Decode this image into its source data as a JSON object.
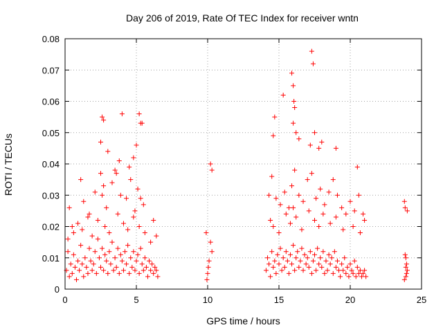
{
  "chart_data": {
    "type": "scatter",
    "title": "Day 206 of 2019, Rate Of TEC Index for receiver wntn",
    "xlabel": "GPS time / hours",
    "ylabel": "ROTI / TECUs",
    "xlim": [
      0,
      25
    ],
    "ylim": [
      0,
      0.08
    ],
    "xticks": [
      "0",
      "5",
      "10",
      "15",
      "20",
      "25"
    ],
    "yticks": [
      "0",
      "0.01",
      "0.02",
      "0.03",
      "0.04",
      "0.05",
      "0.06",
      "0.07",
      "0.08"
    ],
    "xtick_values": [
      0,
      5,
      10,
      15,
      20,
      25
    ],
    "ytick_values": [
      0,
      0.01,
      0.02,
      0.03,
      0.04,
      0.05,
      0.06,
      0.07,
      0.08
    ],
    "grid": true,
    "marker": "+",
    "color": "#ff0000",
    "series": [
      {
        "x": [
          0.1,
          0.2,
          0.3,
          0.4,
          0.5,
          0.6,
          0.7,
          0.8,
          0.9,
          1.0,
          1.1,
          1.2,
          1.3,
          1.4,
          1.5,
          1.6,
          1.7,
          1.8,
          1.9,
          2.0,
          2.1,
          2.2,
          2.3,
          2.4,
          2.5,
          2.6,
          2.7,
          2.8,
          2.9,
          3.0,
          3.1,
          3.2,
          3.3,
          3.4,
          3.5,
          3.6,
          3.7,
          3.8,
          3.9,
          4.0,
          4.1,
          4.2,
          4.3,
          4.4,
          4.5,
          4.6,
          4.7,
          4.8,
          4.9,
          5.0,
          5.1,
          5.2,
          5.3,
          5.4,
          5.5,
          5.6,
          5.7,
          5.8,
          5.9,
          6.0,
          6.1,
          6.2,
          6.3,
          6.4,
          6.5,
          0.3,
          0.5,
          1.1,
          1.3,
          1.7,
          2.1,
          2.5,
          2.6,
          2.7,
          2.9,
          3.3,
          3.5,
          3.9,
          4.3,
          4.6,
          4.9,
          5.1,
          5.3,
          5.5,
          6.2,
          0.2,
          0.6,
          0.9,
          1.2,
          1.6,
          1.9,
          2.3,
          2.8,
          3.1,
          3.7,
          4.1,
          4.4,
          4.8,
          5.2,
          5.6,
          6.0,
          6.4,
          2.6,
          2.7,
          4.0,
          5.0,
          5.2,
          5.3,
          3.0,
          3.8,
          4.8,
          5.4,
          2.5,
          3.6,
          4.5,
          9.9,
          10.0,
          10.1,
          10.2,
          10.3,
          10.2,
          10.3,
          9.95,
          10.05,
          14.1,
          14.2,
          14.3,
          14.4,
          14.5,
          14.6,
          14.7,
          14.8,
          14.9,
          15.0,
          15.1,
          15.2,
          15.3,
          15.4,
          15.5,
          15.6,
          15.7,
          15.8,
          15.9,
          16.0,
          16.1,
          16.2,
          16.3,
          16.4,
          16.5,
          16.6,
          16.7,
          16.8,
          16.9,
          17.0,
          17.1,
          17.2,
          17.3,
          17.4,
          17.5,
          17.6,
          17.7,
          17.8,
          17.9,
          18.0,
          18.1,
          18.2,
          18.3,
          18.4,
          18.5,
          18.6,
          18.7,
          18.8,
          18.9,
          19.0,
          19.1,
          19.2,
          19.3,
          19.4,
          19.5,
          19.6,
          19.7,
          19.8,
          19.9,
          20.0,
          20.1,
          20.2,
          20.3,
          20.4,
          20.5,
          20.6,
          20.7,
          20.8,
          20.9,
          21.0,
          21.1,
          14.3,
          14.5,
          14.8,
          15.1,
          15.4,
          15.7,
          15.9,
          16.1,
          16.4,
          16.7,
          17.0,
          17.3,
          17.6,
          17.9,
          18.2,
          18.5,
          18.8,
          19.1,
          19.4,
          19.7,
          20.0,
          20.3,
          20.6,
          20.9,
          14.4,
          14.6,
          15.0,
          15.5,
          15.8,
          16.0,
          16.2,
          16.6,
          17.1,
          17.5,
          17.8,
          18.1,
          18.6,
          19.0,
          19.5,
          20.2,
          20.7,
          21.0,
          15.9,
          16.0,
          16.05,
          16.1,
          16.2,
          17.3,
          17.4,
          17.5,
          14.6,
          14.7,
          15.3,
          16.0,
          16.4,
          17.2,
          17.8,
          18.0,
          19.0,
          20.5,
          23.8,
          23.85,
          23.9,
          23.95,
          24.0,
          23.9,
          23.85,
          23.95,
          23.9,
          23.8,
          24.0
        ],
        "y": [
          0.006,
          0.012,
          0.004,
          0.008,
          0.005,
          0.011,
          0.007,
          0.003,
          0.009,
          0.006,
          0.014,
          0.008,
          0.004,
          0.01,
          0.007,
          0.005,
          0.013,
          0.009,
          0.006,
          0.008,
          0.012,
          0.005,
          0.016,
          0.01,
          0.007,
          0.013,
          0.006,
          0.011,
          0.009,
          0.005,
          0.012,
          0.008,
          0.015,
          0.006,
          0.01,
          0.007,
          0.013,
          0.005,
          0.011,
          0.009,
          0.006,
          0.012,
          0.008,
          0.014,
          0.005,
          0.01,
          0.007,
          0.012,
          0.006,
          0.009,
          0.011,
          0.005,
          0.013,
          0.008,
          0.006,
          0.01,
          0.007,
          0.004,
          0.009,
          0.006,
          0.008,
          0.005,
          0.007,
          0.006,
          0.004,
          0.026,
          0.02,
          0.035,
          0.028,
          0.024,
          0.031,
          0.037,
          0.03,
          0.033,
          0.026,
          0.034,
          0.038,
          0.03,
          0.029,
          0.035,
          0.025,
          0.032,
          0.029,
          0.027,
          0.022,
          0.016,
          0.018,
          0.021,
          0.019,
          0.023,
          0.017,
          0.022,
          0.02,
          0.018,
          0.024,
          0.021,
          0.019,
          0.023,
          0.02,
          0.018,
          0.015,
          0.017,
          0.055,
          0.054,
          0.056,
          0.046,
          0.056,
          0.053,
          0.044,
          0.041,
          0.042,
          0.053,
          0.047,
          0.037,
          0.039,
          0.018,
          0.005,
          0.009,
          0.04,
          0.038,
          0.015,
          0.012,
          0.003,
          0.007,
          0.006,
          0.01,
          0.008,
          0.004,
          0.012,
          0.007,
          0.009,
          0.005,
          0.011,
          0.008,
          0.013,
          0.006,
          0.01,
          0.007,
          0.012,
          0.009,
          0.005,
          0.011,
          0.008,
          0.014,
          0.006,
          0.01,
          0.012,
          0.007,
          0.009,
          0.013,
          0.006,
          0.011,
          0.008,
          0.01,
          0.007,
          0.012,
          0.005,
          0.009,
          0.011,
          0.006,
          0.013,
          0.008,
          0.01,
          0.007,
          0.012,
          0.005,
          0.009,
          0.006,
          0.011,
          0.008,
          0.01,
          0.005,
          0.012,
          0.007,
          0.009,
          0.006,
          0.004,
          0.008,
          0.006,
          0.01,
          0.005,
          0.007,
          0.004,
          0.008,
          0.006,
          0.005,
          0.009,
          0.004,
          0.007,
          0.005,
          0.006,
          0.004,
          0.005,
          0.006,
          0.004,
          0.03,
          0.036,
          0.029,
          0.027,
          0.031,
          0.026,
          0.033,
          0.038,
          0.03,
          0.028,
          0.035,
          0.037,
          0.029,
          0.032,
          0.027,
          0.031,
          0.035,
          0.03,
          0.026,
          0.024,
          0.028,
          0.025,
          0.03,
          0.024,
          0.022,
          0.02,
          0.018,
          0.024,
          0.021,
          0.026,
          0.023,
          0.019,
          0.025,
          0.022,
          0.02,
          0.024,
          0.021,
          0.023,
          0.019,
          0.02,
          0.018,
          0.022,
          0.069,
          0.065,
          0.06,
          0.058,
          0.05,
          0.076,
          0.072,
          0.05,
          0.049,
          0.055,
          0.062,
          0.053,
          0.048,
          0.046,
          0.045,
          0.047,
          0.045,
          0.039,
          0.028,
          0.026,
          0.01,
          0.008,
          0.006,
          0.004,
          0.011,
          0.005,
          0.007,
          0.003,
          0.025
        ]
      }
    ]
  }
}
